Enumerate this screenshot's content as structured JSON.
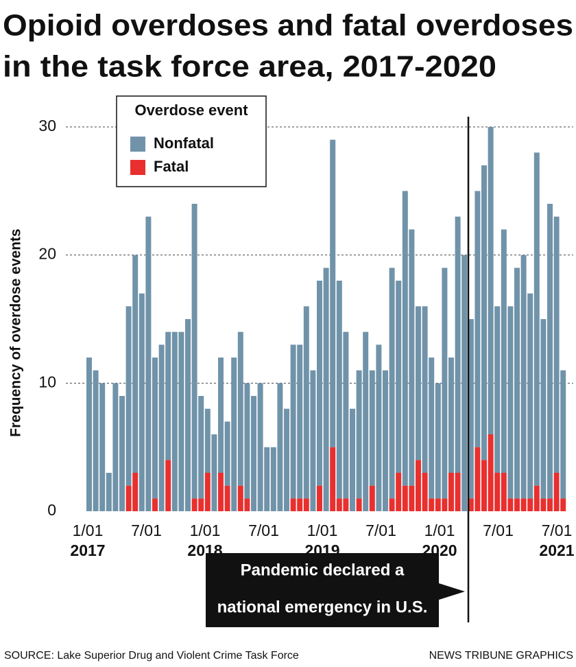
{
  "chart_data": {
    "type": "bar",
    "stacked": true,
    "title": [
      "Opioid overdoses and fatal overdoses",
      "in the task force area, 2017-2020"
    ],
    "y_label": "Frequency of overdose events",
    "legend_title": "Overdose event",
    "categories": [
      null,
      null,
      null,
      null,
      null,
      null,
      null,
      null,
      null,
      null,
      null,
      null,
      null,
      null,
      null,
      null,
      null,
      null,
      null,
      null,
      null,
      null,
      null,
      null,
      null,
      null,
      null,
      null,
      null,
      null,
      null,
      null,
      null,
      null,
      null,
      null,
      null,
      null,
      null,
      null,
      null,
      null,
      null,
      null,
      null,
      null,
      null,
      null,
      null,
      null,
      null,
      null,
      null,
      null,
      null,
      null,
      null,
      null,
      null,
      null,
      null,
      null,
      null,
      null,
      null,
      null,
      null,
      null,
      null,
      null,
      null,
      null,
      null
    ],
    "series": [
      {
        "name": "Fatal",
        "color": "#e8302f",
        "values": [
          0,
          0,
          0,
          0,
          0,
          0,
          2,
          3,
          0,
          0,
          1,
          0,
          4,
          0,
          0,
          0,
          1,
          1,
          3,
          0,
          3,
          2,
          0,
          2,
          1,
          0,
          0,
          0,
          0,
          0,
          0,
          1,
          1,
          1,
          0,
          2,
          0,
          5,
          1,
          1,
          0,
          1,
          0,
          2,
          0,
          0,
          1,
          3,
          2,
          2,
          4,
          3,
          1,
          1,
          1,
          3,
          3,
          0,
          1,
          5,
          4,
          6,
          3,
          3,
          1,
          1,
          1,
          1,
          2,
          1,
          1,
          3,
          1
        ]
      },
      {
        "name": "Nonfatal",
        "color": "#7093a9",
        "values": [
          12,
          11,
          10,
          3,
          10,
          9,
          14,
          17,
          17,
          23,
          11,
          13,
          10,
          14,
          14,
          15,
          23,
          8,
          5,
          6,
          9,
          5,
          12,
          12,
          9,
          9,
          10,
          5,
          5,
          10,
          8,
          12,
          12,
          15,
          11,
          16,
          19,
          24,
          17,
          13,
          8,
          10,
          14,
          9,
          13,
          11,
          18,
          15,
          23,
          20,
          12,
          13,
          11,
          9,
          18,
          9,
          20,
          20,
          14,
          20,
          23,
          24,
          13,
          19,
          15,
          18,
          19,
          16,
          26,
          14,
          23,
          20,
          10
        ]
      }
    ],
    "x_labels": [
      {
        "date": "1/01",
        "year": "2017"
      },
      {
        "date": "7/01"
      },
      {
        "date": "1/01",
        "year": "2018"
      },
      {
        "date": "7/01"
      },
      {
        "date": "1/01",
        "year": "2019"
      },
      {
        "date": "7/01"
      },
      {
        "date": "1/01",
        "year": "2020"
      },
      {
        "date": "7/01"
      },
      {
        "date": "7/01",
        "year": "2021"
      }
    ],
    "ylim": [
      0,
      30
    ],
    "yticks": [
      0,
      10,
      20,
      30
    ],
    "grid": true,
    "annotation": [
      "Pandemic declared a",
      "national emergency in U.S."
    ],
    "source": "SOURCE: Lake Superior Drug and Violent Crime Task Force",
    "credit": "NEWS TRIBUNE GRAPHICS"
  }
}
